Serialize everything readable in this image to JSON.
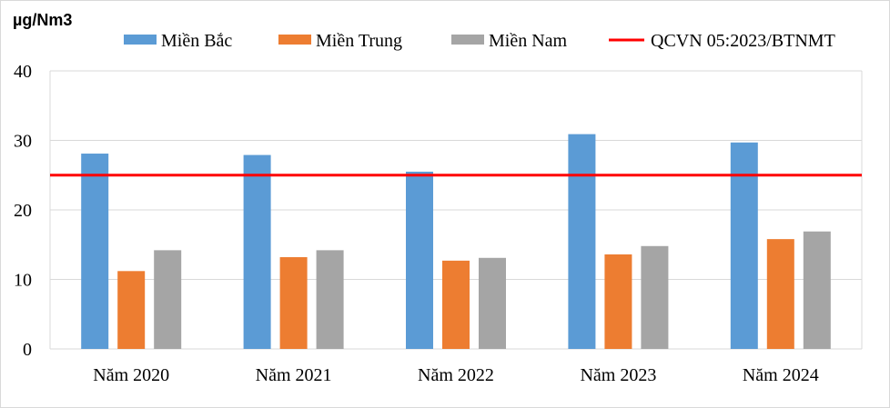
{
  "chart_data": {
    "type": "bar",
    "ylabel": "µg/Nm3",
    "ylim": [
      0,
      40
    ],
    "yticks": [
      "0",
      "10",
      "20",
      "30",
      "40"
    ],
    "ytick_values": [
      0,
      10,
      20,
      30,
      40
    ],
    "grid": true,
    "legend_position": "top",
    "categories": [
      "Năm 2020",
      "Năm 2021",
      "Năm 2022",
      "Năm 2023",
      "Năm 2024"
    ],
    "series": [
      {
        "name": "Miền Bắc",
        "color": "#5b9bd5",
        "values": [
          28.1,
          27.9,
          25.5,
          30.9,
          29.7
        ]
      },
      {
        "name": "Miền Trung",
        "color": "#ed7d31",
        "values": [
          11.2,
          13.2,
          12.7,
          13.6,
          15.8
        ]
      },
      {
        "name": "Miền Nam",
        "color": "#a5a5a5",
        "values": [
          14.2,
          14.2,
          13.1,
          14.8,
          16.9
        ]
      }
    ],
    "reference_line": {
      "name": "QCVN 05:2023/BTNMT",
      "value": 25,
      "color": "#ff0000"
    }
  }
}
